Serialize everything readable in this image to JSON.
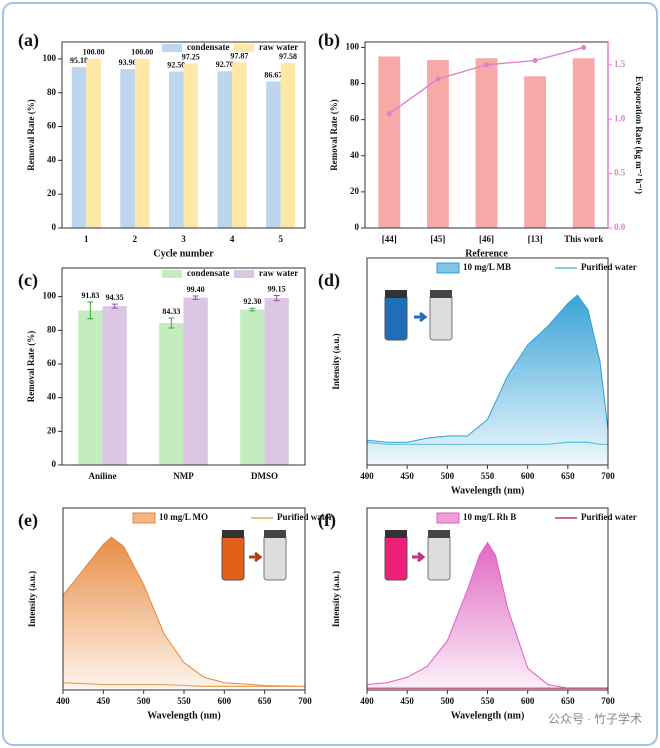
{
  "chart_data": [
    {
      "type": "bar",
      "label": "(a)",
      "categories": [
        "1",
        "2",
        "3",
        "4",
        "5"
      ],
      "x_label": "Cycle number",
      "y_label": "Removal Rate (%)",
      "ylim": [
        0,
        110
      ],
      "yticks": [
        0,
        20,
        40,
        60,
        80,
        100
      ],
      "legend": "top",
      "series": [
        {
          "name": "condensate",
          "color": "#bdd5ee",
          "values": [
            95.18,
            93.9,
            92.5,
            92.7,
            86.67
          ],
          "value_labels": [
            "95.18",
            "93.90",
            "92.50",
            "92.70",
            "86.67"
          ]
        },
        {
          "name": "raw water",
          "color": "#fde8a6",
          "values": [
            100,
            100,
            97.25,
            97.87,
            97.58
          ],
          "value_labels": [
            "100.00",
            "100.00",
            "97.25",
            "97.87",
            "97.58"
          ]
        }
      ]
    },
    {
      "type": "bar_line",
      "label": "(b)",
      "categories": [
        "[44]",
        "[45]",
        "[46]",
        "[13]",
        "This work"
      ],
      "x_label": "Reference",
      "y_label": "Removal Rate (%)",
      "y2_label": "Evaporation Rate (kg m⁻² h⁻¹)",
      "ylim": [
        0,
        103
      ],
      "yticks": [
        0,
        20,
        40,
        60,
        80,
        100
      ],
      "y2lim": [
        0,
        1.71
      ],
      "y2ticks": [
        {
          "value": 0,
          "label": "0.0"
        },
        {
          "value": 0.5,
          "label": "0.5"
        },
        {
          "value": 1,
          "label": "1.0"
        },
        {
          "value": 1.5,
          "label": "1.5"
        }
      ],
      "y2color": "#df7fd0",
      "series": [
        {
          "type": "bar",
          "color": "#f7a9a8",
          "values": [
            95,
            93,
            94,
            84,
            94
          ]
        },
        {
          "type": "line",
          "axis": "y2",
          "color": "#df7fd0",
          "values": [
            1.05,
            1.37,
            1.5,
            1.54,
            1.66
          ]
        }
      ]
    },
    {
      "type": "bar",
      "label": "(c)",
      "categories": [
        "Aniline",
        "NMP",
        "DMSO"
      ],
      "y_label": "Removal Rate (%)",
      "ylim": [
        0,
        117
      ],
      "yticks": [
        0,
        20,
        40,
        60,
        80,
        100
      ],
      "legend": "top",
      "series": [
        {
          "name": "condensate",
          "color": "#c5ecc0",
          "error_color": "#3aa63a",
          "values": [
            91.83,
            84.33,
            92.3
          ],
          "errors": [
            5,
            3,
            0.8
          ],
          "value_labels": [
            "91.83",
            "84.33",
            "92.30"
          ]
        },
        {
          "name": "raw water",
          "color": "#dcc6e3",
          "error_color": "#8a5a9a",
          "values": [
            94.35,
            99.4,
            99.15
          ],
          "errors": [
            1.2,
            1,
            1.5
          ],
          "value_labels": [
            "94.35",
            "99.40",
            "99.15"
          ]
        }
      ]
    },
    {
      "type": "area",
      "label": "(d)",
      "x_label": "Wavelength (nm)",
      "y_label": "Intensity (a.u.)",
      "xlim": [
        400,
        700
      ],
      "xticks": [
        400,
        450,
        500,
        550,
        600,
        650,
        700
      ],
      "ylim": [
        0,
        1
      ],
      "legend": "top",
      "x": [
        400,
        425,
        450,
        475,
        500,
        525,
        550,
        575,
        600,
        625,
        650,
        662,
        675,
        690,
        700
      ],
      "series": [
        {
          "name": "10 mg/L MB",
          "style": "area",
          "color": "#2f9fd6",
          "values": [
            0.12,
            0.11,
            0.11,
            0.13,
            0.14,
            0.14,
            0.22,
            0.43,
            0.58,
            0.67,
            0.78,
            0.82,
            0.75,
            0.5,
            0.17
          ]
        },
        {
          "name": "Purified water",
          "style": "line",
          "color": "#5cc0e0",
          "values": [
            0.11,
            0.1,
            0.1,
            0.1,
            0.1,
            0.1,
            0.1,
            0.1,
            0.1,
            0.1,
            0.11,
            0.11,
            0.11,
            0.1,
            0.1
          ]
        }
      ]
    },
    {
      "type": "area",
      "label": "(e)",
      "x_label": "Wavelength (nm)",
      "y_label": "Intensity (a.u.)",
      "xlim": [
        400,
        700
      ],
      "xticks": [
        400,
        450,
        500,
        550,
        600,
        650,
        700
      ],
      "ylim": [
        0,
        1
      ],
      "legend": "top",
      "x": [
        400,
        425,
        450,
        460,
        475,
        500,
        525,
        550,
        575,
        600,
        650,
        700
      ],
      "series": [
        {
          "name": "10 mg/L MO",
          "style": "area",
          "color": "#e8873a",
          "values": [
            0.52,
            0.66,
            0.8,
            0.84,
            0.79,
            0.58,
            0.31,
            0.15,
            0.07,
            0.04,
            0.025,
            0.02
          ]
        },
        {
          "name": "Purified water",
          "style": "line",
          "color": "#e8a55a",
          "values": [
            0.04,
            0.035,
            0.03,
            0.03,
            0.03,
            0.03,
            0.03,
            0.025,
            0.02,
            0.02,
            0.02,
            0.02
          ]
        }
      ]
    },
    {
      "type": "area",
      "label": "(f)",
      "x_label": "Wavelength (nm)",
      "y_label": "Intensity (a.u.)",
      "xlim": [
        400,
        700
      ],
      "xticks": [
        400,
        450,
        500,
        550,
        600,
        650,
        700
      ],
      "ylim": [
        0,
        1
      ],
      "legend": "top",
      "x": [
        400,
        425,
        450,
        475,
        500,
        525,
        540,
        550,
        560,
        575,
        600,
        625,
        650,
        700
      ],
      "series": [
        {
          "name": "10 mg/L Rh B",
          "style": "area",
          "color": "#e05fc0",
          "values": [
            0.03,
            0.04,
            0.07,
            0.13,
            0.27,
            0.55,
            0.74,
            0.81,
            0.74,
            0.45,
            0.12,
            0.03,
            0.01,
            0.01
          ]
        },
        {
          "name": "Purified water",
          "style": "line",
          "color": "#b0405a",
          "values": [
            0.01,
            0.01,
            0.01,
            0.01,
            0.01,
            0.01,
            0.01,
            0.01,
            0.01,
            0.01,
            0.01,
            0.01,
            0.01,
            0.01
          ]
        }
      ]
    }
  ],
  "watermark": "公众号 · 竹子学术"
}
